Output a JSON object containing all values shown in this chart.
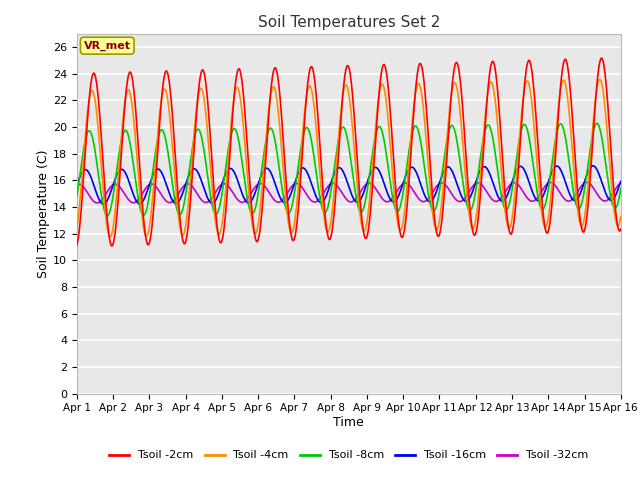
{
  "title": "Soil Temperatures Set 2",
  "xlabel": "Time",
  "ylabel": "Soil Temperature (C)",
  "xlim": [
    0,
    15
  ],
  "ylim": [
    0,
    27
  ],
  "yticks": [
    0,
    2,
    4,
    6,
    8,
    10,
    12,
    14,
    16,
    18,
    20,
    22,
    24,
    26
  ],
  "xtick_labels": [
    "Apr 1",
    "Apr 2",
    "Apr 3",
    "Apr 4",
    "Apr 5",
    "Apr 6",
    "Apr 7",
    "Apr 8",
    "Apr 9",
    "Apr 10",
    "Apr 11",
    "Apr 12",
    "Apr 13",
    "Apr 14",
    "Apr 15",
    "Apr 16"
  ],
  "annotation_text": "VR_met",
  "fig_bg_color": "#FFFFFF",
  "plot_bg_color": "#E8E8E8",
  "grid_color": "#FFFFFF",
  "line_colors": {
    "2cm": "#FF0000",
    "4cm": "#FF8C00",
    "8cm": "#00CC00",
    "16cm": "#0000EE",
    "32cm": "#CC00CC"
  },
  "legend_labels": [
    "Tsoil -2cm",
    "Tsoil -4cm",
    "Tsoil -8cm",
    "Tsoil -16cm",
    "Tsoil -32cm"
  ],
  "legend_colors": [
    "#FF0000",
    "#FF8C00",
    "#00CC00",
    "#0000EE",
    "#CC00CC"
  ],
  "mean_2": 17.5,
  "amp_2": 6.5,
  "phase_2": -1.37,
  "mean_4": 17.2,
  "amp_4": 5.5,
  "phase_4": -1.07,
  "mean_8": 16.5,
  "amp_8": 3.2,
  "phase_8": -0.57,
  "mean_16": 15.5,
  "amp_16": 1.3,
  "phase_16": 0.1,
  "mean_32": 15.0,
  "amp_32": 0.7,
  "phase_32": 1.2,
  "trend_2": 0.08,
  "trend_4": 0.06,
  "trend_8": 0.04,
  "trend_16": 0.02,
  "trend_32": 0.01
}
